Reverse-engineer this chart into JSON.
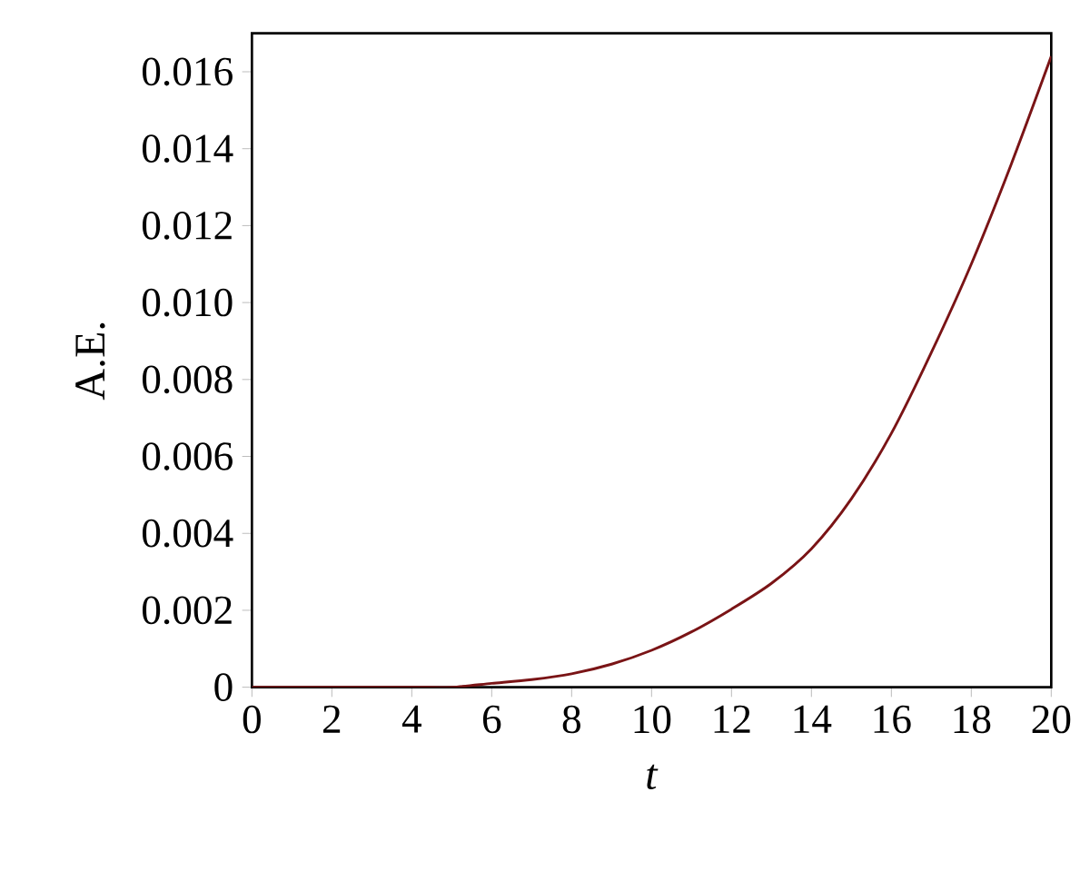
{
  "chart_data": {
    "type": "line",
    "xlabel": "*t*",
    "ylabel": "A.E.",
    "x": [
      0,
      2,
      4,
      5,
      6,
      7,
      8,
      9,
      10,
      11,
      12,
      13,
      14,
      15,
      16,
      17,
      18,
      19,
      20
    ],
    "series": [
      {
        "color": "#7a1416",
        "values": [
          0,
          0,
          0,
          0,
          0.0001,
          0.0002,
          0.00035,
          0.0006,
          0.00096,
          0.00144,
          0.00203,
          0.0027,
          0.0036,
          0.0049,
          0.0066,
          0.0087,
          0.011,
          0.0136,
          0.0164
        ]
      }
    ],
    "xlim": [
      0,
      20
    ],
    "ylim": [
      0,
      0.017
    ],
    "xticks": [
      0,
      2,
      4,
      6,
      8,
      10,
      12,
      14,
      16,
      18,
      20
    ],
    "yticks": [
      0,
      0.002,
      0.004,
      0.006,
      0.008,
      {
        "value": 0.01,
        "label": "0.010"
      },
      0.012,
      0.014,
      0.016
    ]
  }
}
